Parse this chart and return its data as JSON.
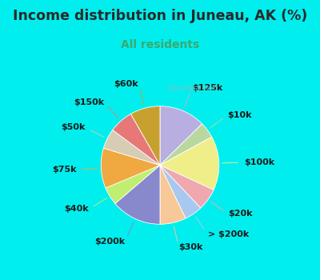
{
  "title": "Income distribution in Juneau, AK (%)",
  "subtitle": "All residents",
  "title_color": "#2a2a2a",
  "subtitle_color": "#3aaa70",
  "bg_top": "#00EEEE",
  "bg_chart": "#e0f5e8",
  "watermark": "City-Data.com",
  "slices": [
    {
      "label": "$125k",
      "value": 11.5,
      "color": "#b8aee0"
    },
    {
      "label": "$10k",
      "value": 4.0,
      "color": "#b8d8a0"
    },
    {
      "label": "$100k",
      "value": 13.5,
      "color": "#f0ee88"
    },
    {
      "label": "$20k",
      "value": 5.5,
      "color": "#f0a8b0"
    },
    {
      "label": "> $200k",
      "value": 4.5,
      "color": "#a8c8f0"
    },
    {
      "label": "$30k",
      "value": 6.5,
      "color": "#f8c898"
    },
    {
      "label": "$200k",
      "value": 12.5,
      "color": "#8888cc"
    },
    {
      "label": "$40k",
      "value": 4.5,
      "color": "#c0ee70"
    },
    {
      "label": "$75k",
      "value": 10.0,
      "color": "#f0a840"
    },
    {
      "label": "$50k",
      "value": 5.0,
      "color": "#d8ccb4"
    },
    {
      "label": "$150k",
      "value": 6.0,
      "color": "#e87878"
    },
    {
      "label": "$60k",
      "value": 7.5,
      "color": "#c8a030"
    }
  ],
  "label_fontsize": 8,
  "label_color": "#1a1a1a",
  "figsize": [
    4.0,
    3.5
  ],
  "dpi": 100
}
